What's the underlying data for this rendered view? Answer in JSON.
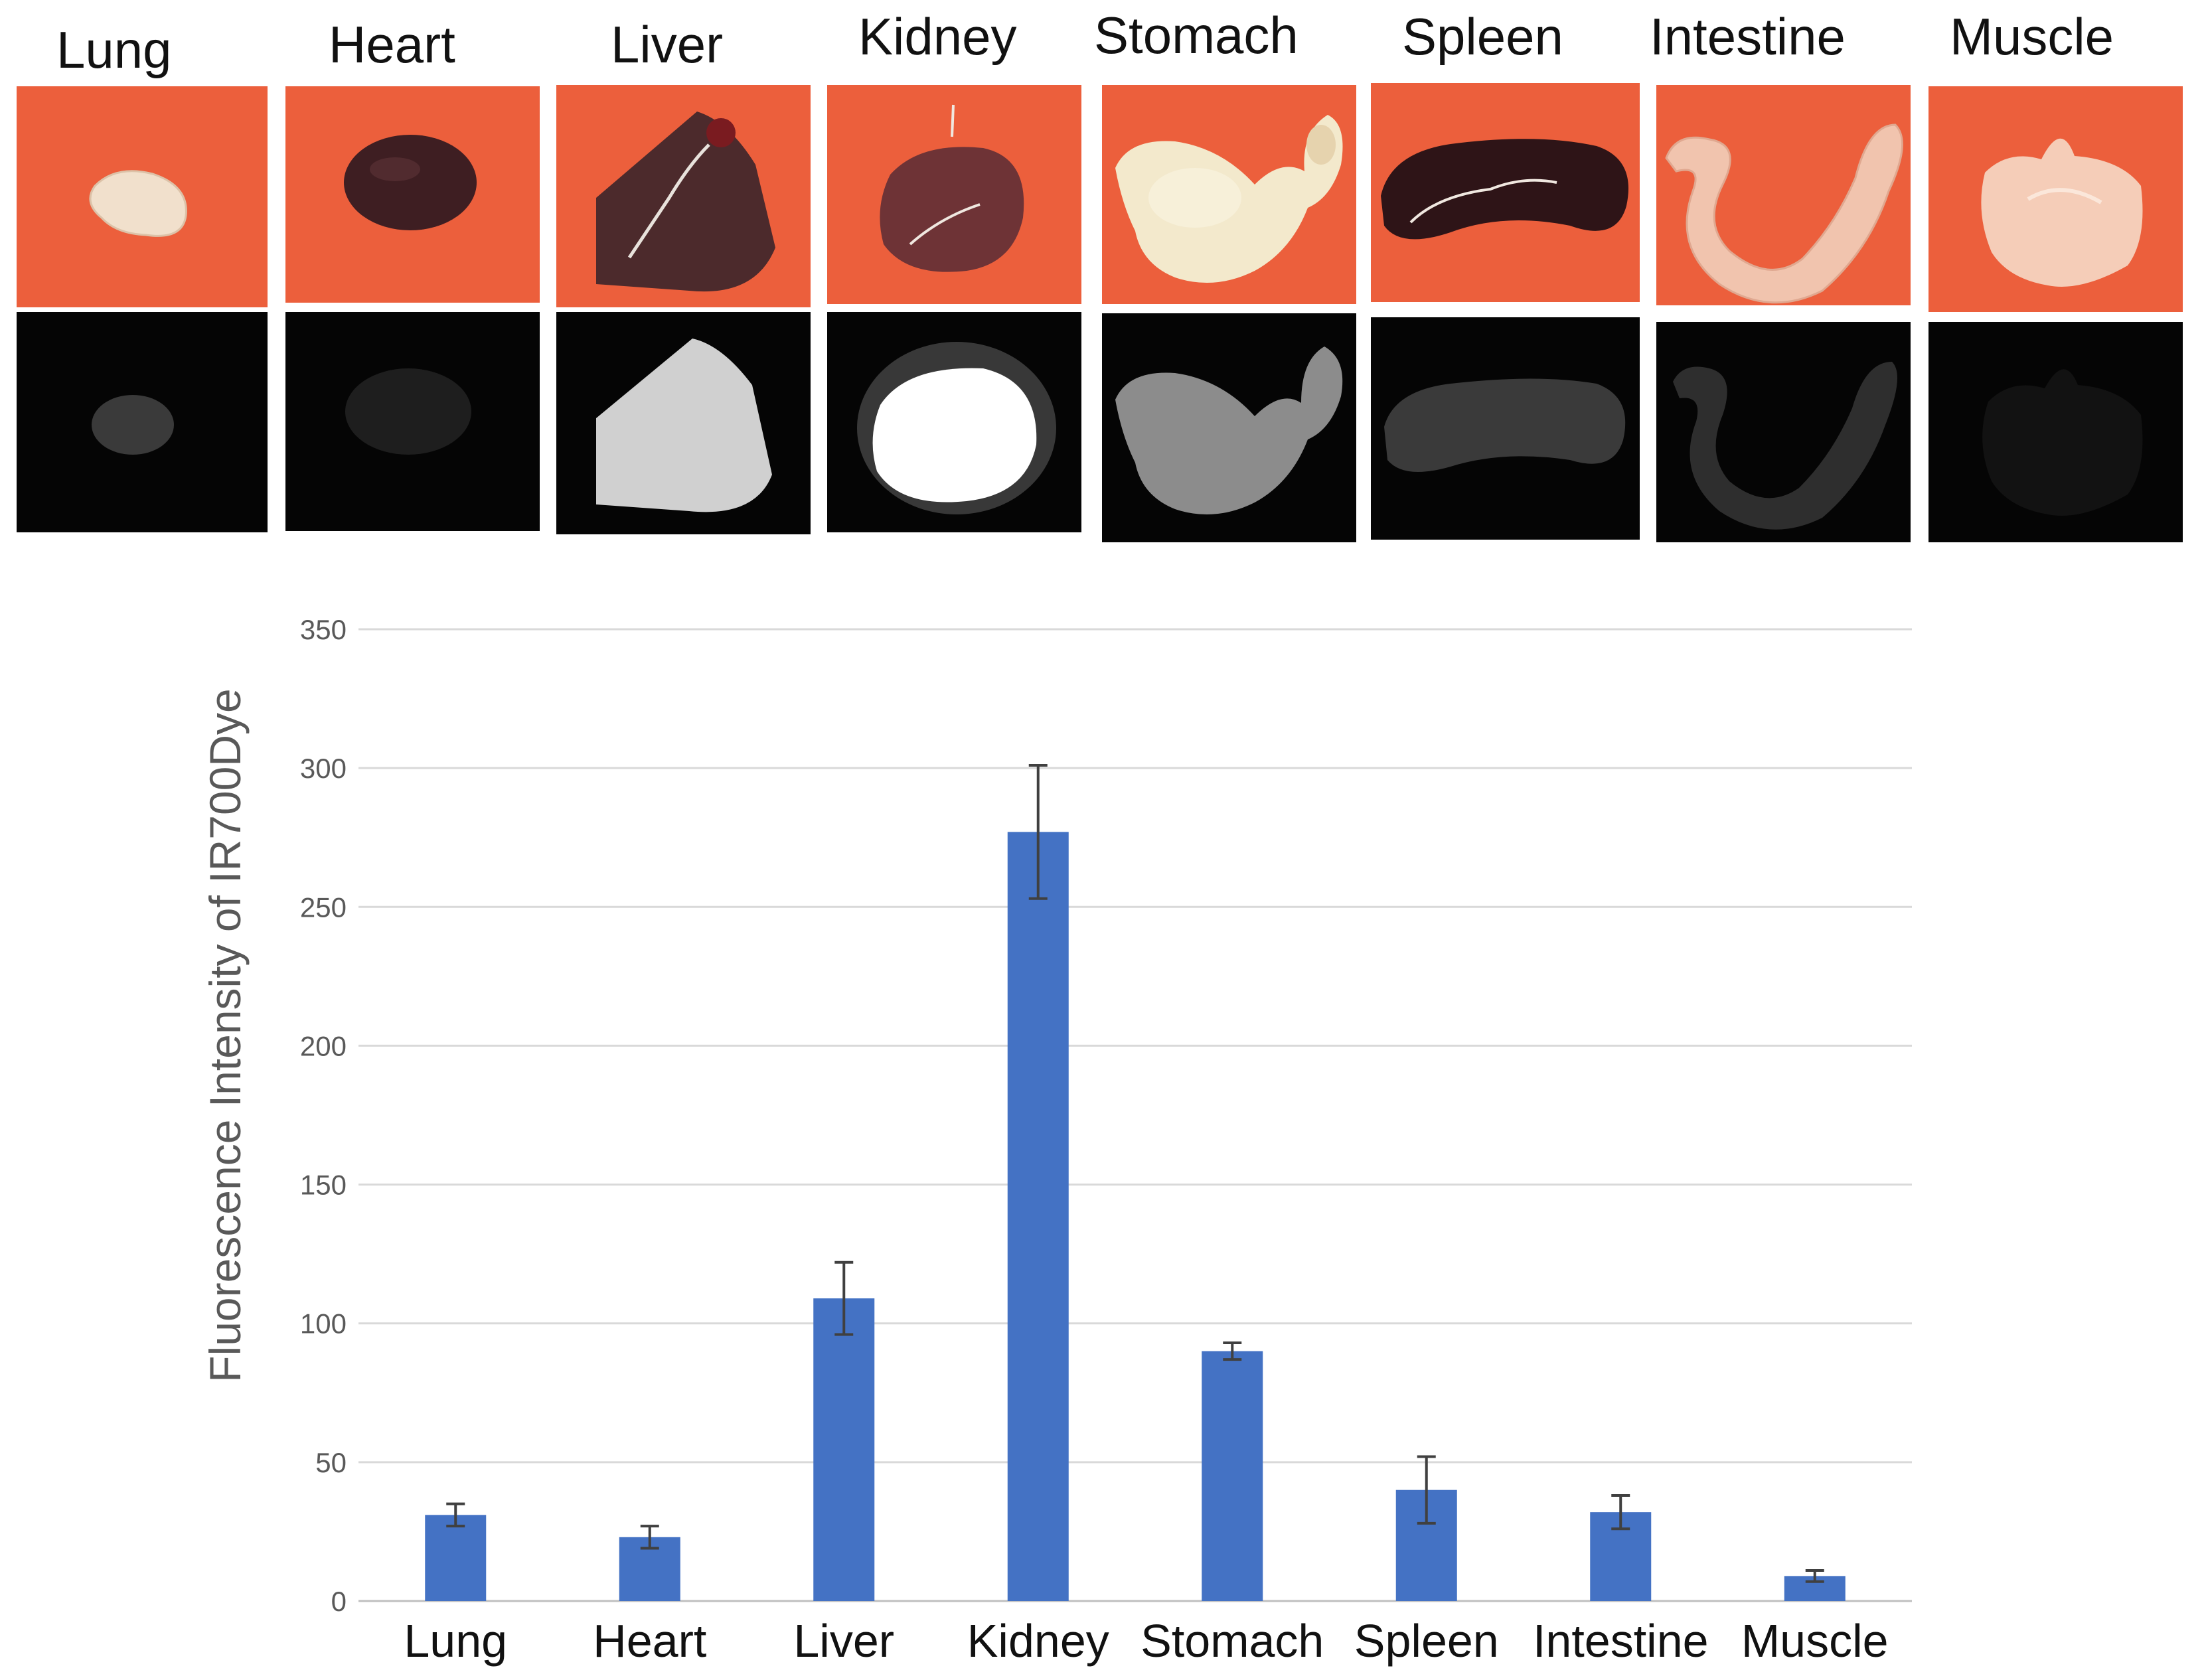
{
  "organs": [
    "Lung",
    "Heart",
    "Liver",
    "Kidney",
    "Stomach",
    "Spleen",
    "Intestine",
    "Muscle"
  ],
  "fluorescence_brightness": {
    "Lung": "dim",
    "Heart": "faint",
    "Liver": "bright",
    "Kidney": "saturated",
    "Stomach": "moderate",
    "Spleen": "dim",
    "Intestine": "dim",
    "Muscle": "faint"
  },
  "colors": {
    "photo_background": "#ec5f3c",
    "fluorescence_background": "#050505",
    "bar": "#4472c4",
    "gridline": "#d9d9d9",
    "error_bar": "#404040",
    "tick_text": "#595959",
    "axis_title": "#595959",
    "category_text": "#111111"
  },
  "chart_data": {
    "type": "bar",
    "title": "",
    "xlabel": "",
    "ylabel": "Fluorescence Intensity of IR700Dye",
    "categories": [
      "Lung",
      "Heart",
      "Liver",
      "Kidney",
      "Stomach",
      "Spleen",
      "Intestine",
      "Muscle"
    ],
    "values": [
      31,
      23,
      109,
      277,
      90,
      40,
      32,
      9
    ],
    "error": [
      4,
      4,
      13,
      24,
      3,
      12,
      6,
      2
    ],
    "ylim": [
      0,
      350
    ],
    "yticks": [
      0,
      50,
      100,
      150,
      200,
      250,
      300,
      350
    ],
    "grid": true,
    "legend": "none"
  }
}
